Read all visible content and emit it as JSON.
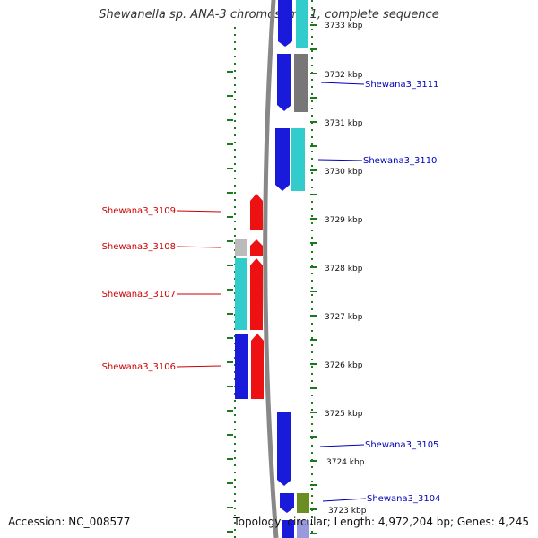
{
  "header": {
    "title": "Shewanella sp. ANA-3 chromosome 1, complete sequence"
  },
  "footer": {
    "accession": "Accession: NC_008577",
    "topology": "Topology: circular; Length: 4,972,204 bp; Genes: 4,245"
  },
  "map": {
    "scale_labels": [
      "3733 kbp",
      "3732 kbp",
      "3731 kbp",
      "3730 kbp",
      "3729 kbp",
      "3728 kbp",
      "3727 kbp",
      "3726 kbp",
      "3725 kbp",
      "3724 kbp",
      "3723 kbp"
    ],
    "colors": {
      "backbone": "#888888",
      "ruler": "#1b7a1b",
      "forward_label": "#0000bb",
      "reverse_label": "#cc0000",
      "blue": "#1a1adb",
      "cyan": "#33cccc",
      "gray": "#777777",
      "light_gray": "#bbbbbb",
      "red": "#ee1111",
      "olive": "#6b8e23"
    },
    "forward_genes": [
      {
        "label": "Shewana3_3111"
      },
      {
        "label": "Shewana3_3110"
      },
      {
        "label": "Shewana3_3105"
      },
      {
        "label": "Shewana3_3104"
      }
    ],
    "reverse_genes": [
      {
        "label": "Shewana3_3109"
      },
      {
        "label": "Shewana3_3108"
      },
      {
        "label": "Shewana3_3107"
      },
      {
        "label": "Shewana3_3106"
      }
    ]
  }
}
